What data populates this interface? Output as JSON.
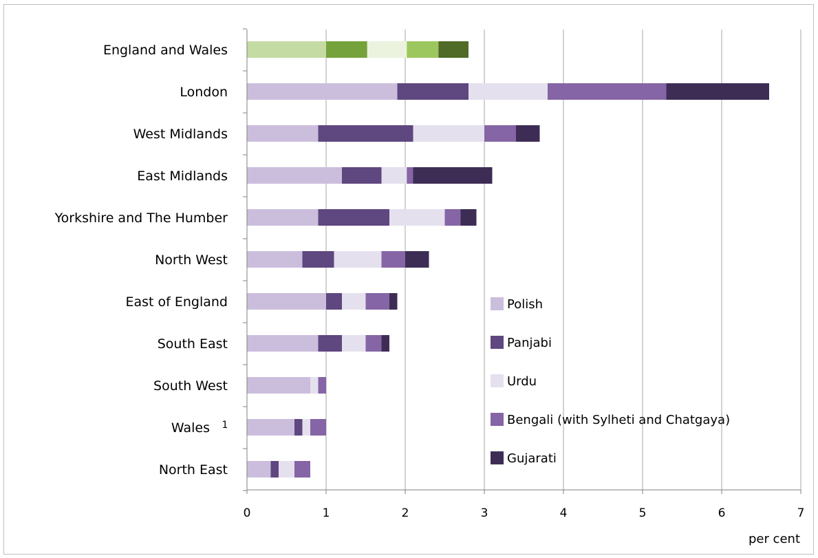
{
  "chart_data": {
    "type": "bar",
    "orientation": "horizontal",
    "stacked": true,
    "categories": [
      "England and Wales",
      "London",
      "West Midlands",
      "East Midlands",
      "Yorkshire and The Humber",
      "North West",
      "East of England",
      "South East",
      "South West",
      "Wales",
      "North East"
    ],
    "category_superscripts": {
      "Wales": "1"
    },
    "series": [
      {
        "name": "Polish",
        "values": [
          1.0,
          1.9,
          0.9,
          1.2,
          0.9,
          0.7,
          1.0,
          0.9,
          0.8,
          0.6,
          0.3
        ]
      },
      {
        "name": "Panjabi",
        "values": [
          0.52,
          0.9,
          1.2,
          0.5,
          0.9,
          0.4,
          0.2,
          0.3,
          0.0,
          0.1,
          0.1
        ]
      },
      {
        "name": "Urdu",
        "values": [
          0.5,
          1.0,
          0.9,
          0.32,
          0.7,
          0.6,
          0.3,
          0.3,
          0.1,
          0.1,
          0.2
        ]
      },
      {
        "name": "Bengali (with Sylheti and Chatgaya)",
        "values": [
          0.4,
          1.5,
          0.4,
          0.08,
          0.2,
          0.3,
          0.3,
          0.2,
          0.1,
          0.2,
          0.2
        ]
      },
      {
        "name": "Gujarati",
        "values": [
          0.38,
          1.3,
          0.3,
          1.0,
          0.2,
          0.3,
          0.1,
          0.1,
          0.0,
          0.0,
          0.0
        ]
      }
    ],
    "colors": [
      "#cbbedd",
      "#5f4780",
      "#e5e0ee",
      "#8565a5",
      "#3d2d55"
    ],
    "highlight_colors": [
      "#c4dba3",
      "#76a23c",
      "#ebf3df",
      "#9cc75e",
      "#4f6b27"
    ],
    "highlight_category": "England and Wales",
    "xlim": [
      0,
      7
    ],
    "x_ticks": [
      "0",
      "1",
      "2",
      "3",
      "4",
      "5",
      "6",
      "7"
    ],
    "xlabel": "per cent",
    "ylabel": "",
    "grid": "vertical",
    "legend_position": "inside-bottom-right"
  }
}
